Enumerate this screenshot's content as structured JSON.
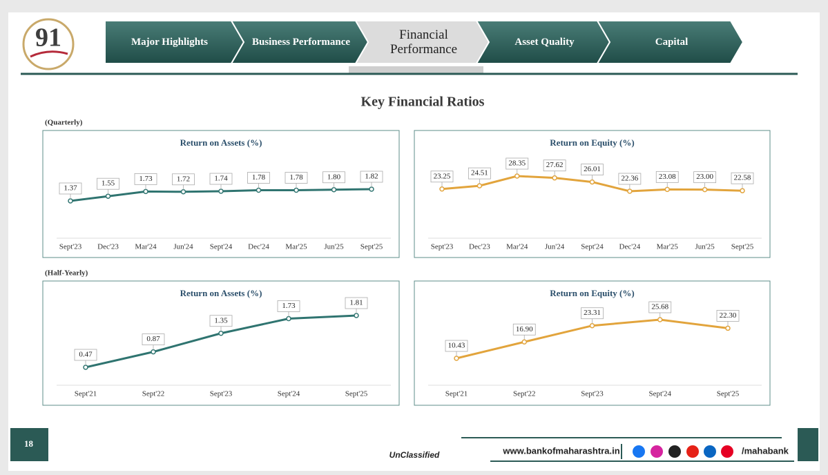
{
  "header": {
    "logo": "91",
    "tabs": [
      "Major Highlights",
      "Business Performance",
      "Financial Performance",
      "Asset Quality",
      "Capital"
    ]
  },
  "section_title": "Key Financial Ratios",
  "groups": [
    "(Quarterly)",
    "(Half-Yearly)"
  ],
  "chart_data": [
    {
      "type": "line",
      "title": "Return on Assets (%)",
      "color": "#2f7470",
      "categories": [
        "Sept'23",
        "Dec'23",
        "Mar'24",
        "Jun'24",
        "Sept'24",
        "Dec'24",
        "Mar'25",
        "Jun'25",
        "Sept'25"
      ],
      "values": [
        1.37,
        1.55,
        1.73,
        1.72,
        1.74,
        1.78,
        1.78,
        1.8,
        1.82
      ],
      "value_labels": [
        "1.37",
        "1.55",
        "1.73",
        "1.72",
        "1.74",
        "1.78",
        "1.78",
        "1.80",
        "1.82"
      ]
    },
    {
      "type": "line",
      "title": "Return on Equity (%)",
      "color": "#e2a43c",
      "categories": [
        "Sept'23",
        "Dec'23",
        "Mar'24",
        "Jun'24",
        "Sept'24",
        "Dec'24",
        "Mar'25",
        "Jun'25",
        "Sept'25"
      ],
      "values": [
        23.25,
        24.51,
        28.35,
        27.62,
        26.01,
        22.36,
        23.08,
        23,
        22.58
      ],
      "value_labels": [
        "23.25",
        "24.51",
        "28.35",
        "27.62",
        "26.01",
        "22.36",
        "23.08",
        "23.00",
        "22.58"
      ]
    },
    {
      "type": "line",
      "title": "Return on Assets (%)",
      "color": "#2f7470",
      "categories": [
        "Sept'21",
        "Sept'22",
        "Sept'23",
        "Sept'24",
        "Sept'25"
      ],
      "values": [
        0.47,
        0.87,
        1.35,
        1.73,
        1.81
      ],
      "value_labels": [
        "0.47",
        "0.87",
        "1.35",
        "1.73",
        "1.81"
      ]
    },
    {
      "type": "line",
      "title": "Return on Equity (%)",
      "color": "#e2a43c",
      "categories": [
        "Sept'21",
        "Sept'22",
        "Sept'23",
        "Sept'24",
        "Sept'25"
      ],
      "values": [
        10.43,
        16.9,
        23.31,
        25.68,
        22.3
      ],
      "value_labels": [
        "10.43",
        "16.90",
        "23.31",
        "25.68",
        "22.30"
      ]
    }
  ],
  "footer": {
    "page": "18",
    "classification": "UnClassified",
    "website": "www.bankofmaharashtra.in",
    "handle": "/mahabank"
  }
}
